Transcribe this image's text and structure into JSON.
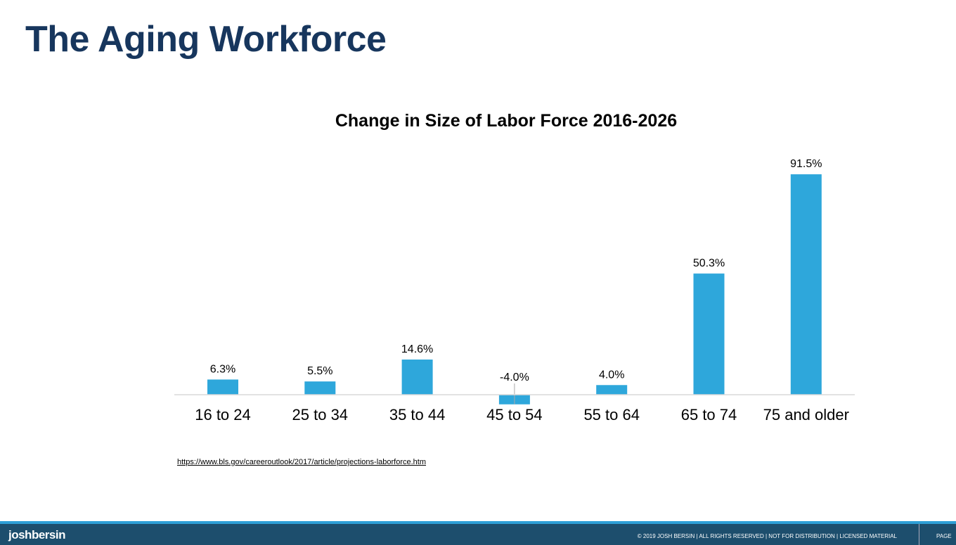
{
  "slide": {
    "title": "The Aging Workforce",
    "source_link": "https://www.bls.gov/careeroutlook/2017/article/projections-laborforce.htm"
  },
  "footer": {
    "logo": "joshbersin",
    "copyright": "© 2019 JOSH BERSIN | ALL RIGHTS RESERVED | NOT FOR DISTRIBUTION | LICENSED MATERIAL",
    "page_label": "PAGE"
  },
  "chart_data": {
    "type": "bar",
    "title": "Change in Size of Labor Force 2016-2026",
    "categories": [
      "16 to 24",
      "25 to 34",
      "35 to 44",
      "45 to 54",
      "55 to 64",
      "65 to 74",
      "75 and older"
    ],
    "values": [
      6.3,
      5.5,
      14.6,
      -4.0,
      4.0,
      50.3,
      91.5
    ],
    "data_labels": [
      "6.3%",
      "5.5%",
      "14.6%",
      "-4.0%",
      "4.0%",
      "50.3%",
      "91.5%"
    ],
    "xlabel": "",
    "ylabel": "",
    "grid": false,
    "bar_color": "#2ea7db"
  }
}
